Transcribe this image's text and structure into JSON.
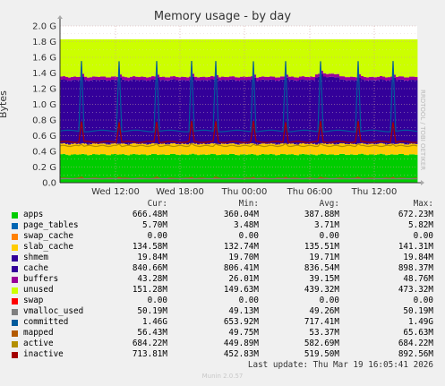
{
  "chart_data": {
    "type": "area",
    "title": "Memory usage - by day",
    "ylabel": "Bytes",
    "ylim": [
      0,
      2000000000
    ],
    "y_ticks": [
      "0.0",
      "0.2 G",
      "0.4 G",
      "0.6 G",
      "0.8 G",
      "1.0 G",
      "1.2 G",
      "1.4 G",
      "1.6 G",
      "1.8 G",
      "2.0 G"
    ],
    "x_ticks": [
      "Wed 12:00",
      "Wed 18:00",
      "Thu 00:00",
      "Thu 06:00",
      "Thu 12:00"
    ],
    "grid": true,
    "watermark": "RRDTOOL / TOBI OETIKER",
    "legend_header": {
      "cur": "Cur:",
      "min": "Min:",
      "avg": "Avg:",
      "max": "Max:"
    },
    "series": [
      {
        "name": "apps",
        "color": "#00cc00",
        "cur": "666.48M",
        "min": "360.04M",
        "avg": "387.88M",
        "max": "672.23M"
      },
      {
        "name": "page_tables",
        "color": "#0066b3",
        "cur": "5.70M",
        "min": "3.48M",
        "avg": "3.71M",
        "max": "5.82M"
      },
      {
        "name": "swap_cache",
        "color": "#ff8000",
        "cur": "0.00",
        "min": "0.00",
        "avg": "0.00",
        "max": "0.00"
      },
      {
        "name": "slab_cache",
        "color": "#ffcc00",
        "cur": "134.58M",
        "min": "132.74M",
        "avg": "135.51M",
        "max": "141.31M"
      },
      {
        "name": "shmem",
        "color": "#330099",
        "cur": "19.84M",
        "min": "19.70M",
        "avg": "19.71M",
        "max": "19.84M"
      },
      {
        "name": "cache",
        "color": "#330099",
        "cur": "840.66M",
        "min": "806.41M",
        "avg": "836.54M",
        "max": "898.37M"
      },
      {
        "name": "buffers",
        "color": "#990099",
        "cur": "43.28M",
        "min": "26.01M",
        "avg": "39.15M",
        "max": "48.76M"
      },
      {
        "name": "unused",
        "color": "#ccff00",
        "cur": "151.28M",
        "min": "149.63M",
        "avg": "439.32M",
        "max": "473.32M"
      },
      {
        "name": "swap",
        "color": "#ff0000",
        "cur": "0.00",
        "min": "0.00",
        "avg": "0.00",
        "max": "0.00"
      },
      {
        "name": "vmalloc_used",
        "color": "#808080",
        "cur": "50.19M",
        "min": "49.13M",
        "avg": "49.26M",
        "max": "50.19M"
      },
      {
        "name": "committed",
        "color": "#005a9c",
        "cur": "1.46G",
        "min": "653.92M",
        "avg": "717.41M",
        "max": "1.49G"
      },
      {
        "name": "mapped",
        "color": "#b35a00",
        "cur": "56.43M",
        "min": "49.75M",
        "avg": "53.37M",
        "max": "65.63M"
      },
      {
        "name": "active",
        "color": "#b38f00",
        "cur": "684.22M",
        "min": "449.89M",
        "avg": "582.69M",
        "max": "684.22M"
      },
      {
        "name": "inactive",
        "color": "#a30000",
        "cur": "713.81M",
        "min": "452.83M",
        "avg": "519.50M",
        "max": "892.56M"
      }
    ],
    "stack_profile": {
      "apps": 360000000,
      "slab_cache": 135000000,
      "buffers_cache": 856000000,
      "unused_top": 1830000000,
      "committed": 660000000,
      "active": 470000000,
      "inactive": 520000000,
      "vmalloc_used": 50000000,
      "mapped": 54000000
    }
  },
  "footer": {
    "last_update": "Last update: Thu Mar 19 16:05:41 2026",
    "munin_version": "Munin 2.0.57"
  }
}
